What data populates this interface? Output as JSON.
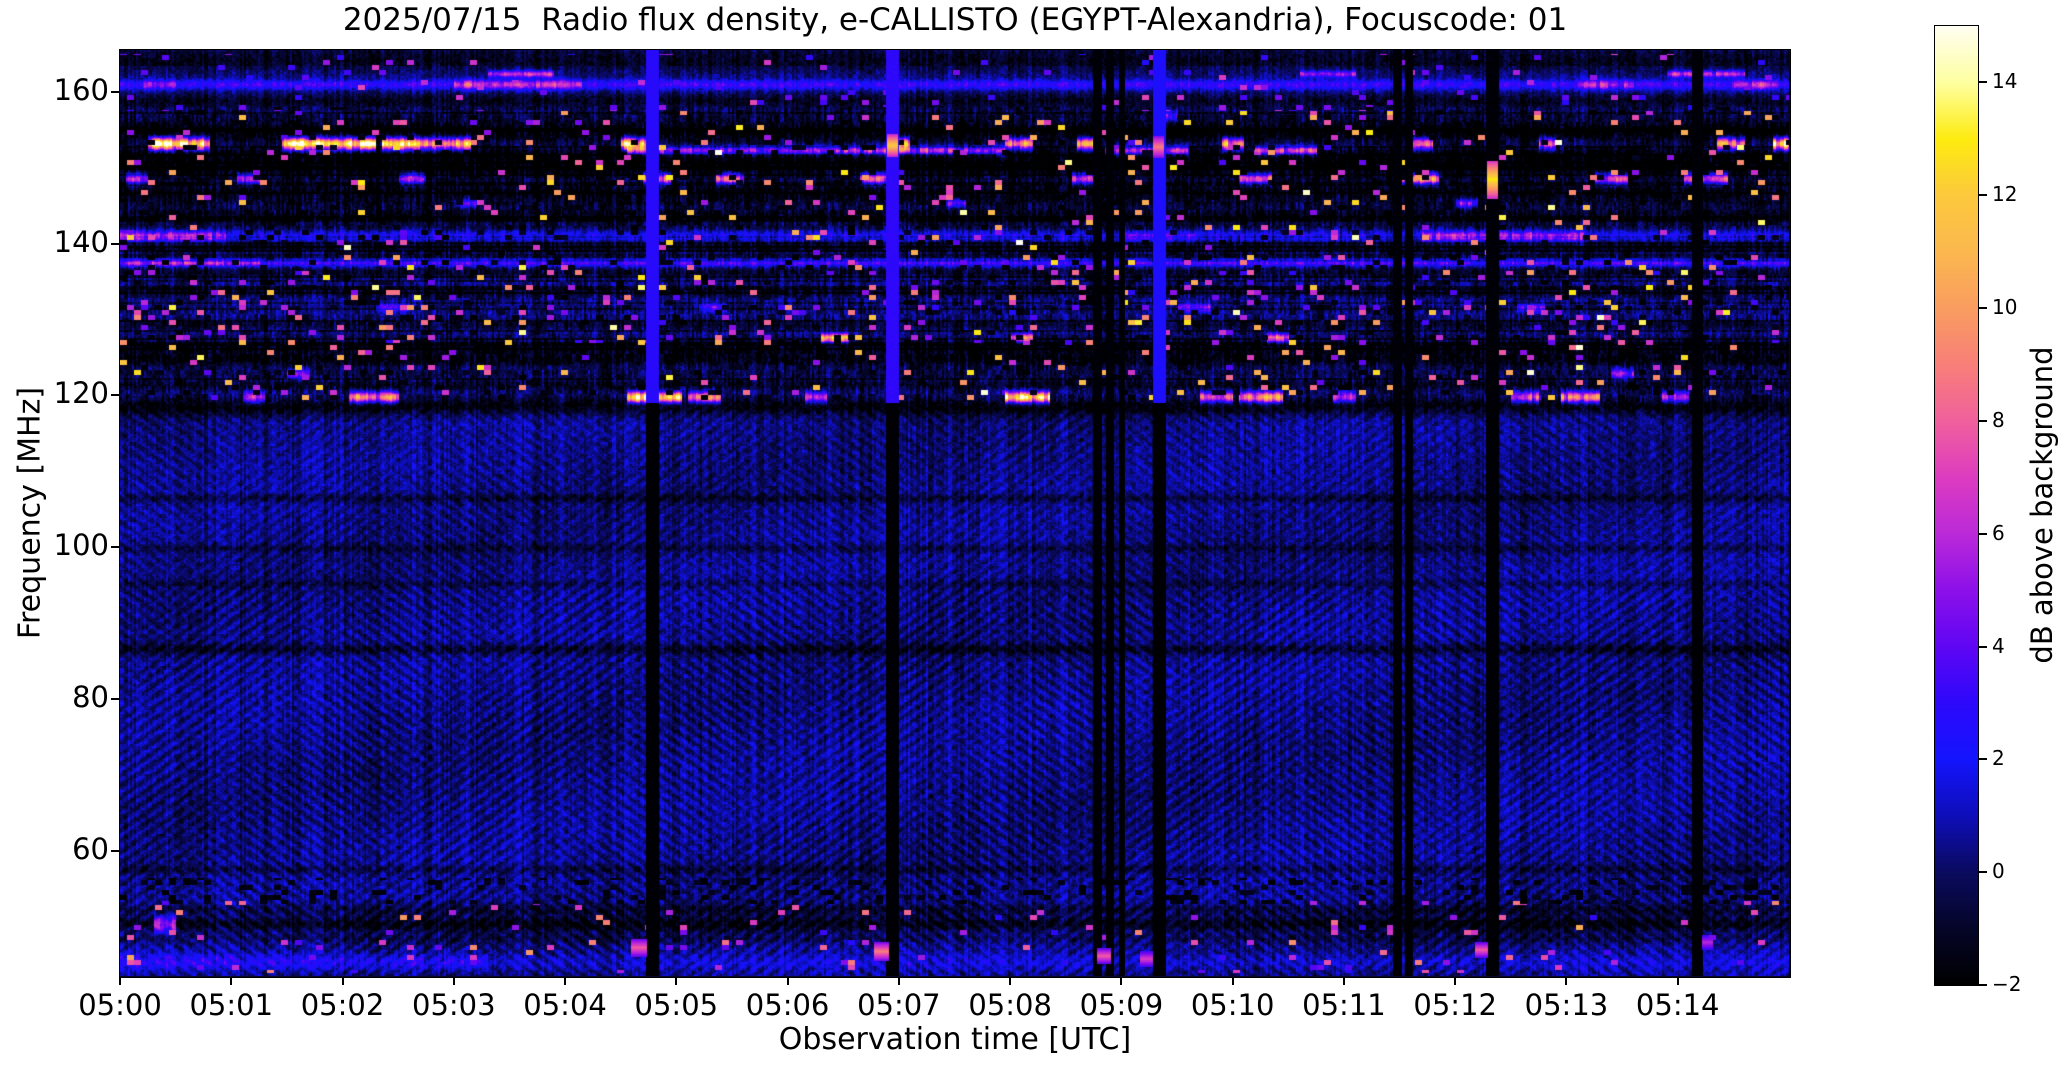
{
  "figure": {
    "title": "2025/07/15  Radio flux density, e-CALLISTO (EGYPT-Alexandria), Focuscode: 01",
    "background": "#ffffff"
  },
  "axes": {
    "xlabel": "Observation time [UTC]",
    "ylabel": "Frequency [MHz]",
    "x_tick_labels": [
      "05:00",
      "05:01",
      "05:02",
      "05:03",
      "05:04",
      "05:05",
      "05:06",
      "05:07",
      "05:08",
      "05:09",
      "05:10",
      "05:11",
      "05:12",
      "05:13",
      "05:14"
    ],
    "y_tick_values": [
      160,
      140,
      120,
      100,
      80,
      60
    ]
  },
  "colorbar": {
    "label": "dB above background",
    "ticks": [
      -2,
      0,
      2,
      4,
      6,
      8,
      10,
      12,
      14
    ],
    "vmin": -2,
    "vmax": 15
  },
  "chart_data": {
    "type": "heatmap",
    "title": "2025/07/15  Radio flux density, e-CALLISTO (EGYPT-Alexandria), Focuscode: 01",
    "xlabel": "Observation time [UTC]",
    "ylabel": "Frequency [MHz]",
    "value_label": "dB above background",
    "x_start_utc": "05:00",
    "x_end_utc": "05:15",
    "x_minutes": 15,
    "freq_top_mhz": 165.5,
    "freq_bottom_mhz": 43.5,
    "vmin": -2,
    "vmax": 15,
    "colorbar_ticks": [
      -2,
      0,
      2,
      4,
      6,
      8,
      10,
      12,
      14
    ],
    "colormap_stops": [
      [
        0.0,
        0,
        0,
        0
      ],
      [
        0.059,
        5,
        5,
        40
      ],
      [
        0.118,
        10,
        10,
        95
      ],
      [
        0.176,
        14,
        14,
        185
      ],
      [
        0.235,
        20,
        20,
        253
      ],
      [
        0.294,
        45,
        8,
        251
      ],
      [
        0.353,
        95,
        6,
        244
      ],
      [
        0.412,
        141,
        16,
        233
      ],
      [
        0.471,
        187,
        42,
        216
      ],
      [
        0.529,
        221,
        60,
        192
      ],
      [
        0.588,
        240,
        96,
        156
      ],
      [
        0.647,
        248,
        127,
        120
      ],
      [
        0.706,
        249,
        157,
        96
      ],
      [
        0.765,
        251,
        184,
        78
      ],
      [
        0.824,
        252,
        201,
        60
      ],
      [
        0.882,
        253,
        235,
        16
      ],
      [
        0.941,
        254,
        255,
        160
      ],
      [
        1.0,
        255,
        254,
        242
      ]
    ],
    "background_level_db": 0.4,
    "rfi_zone": {
      "f0": 119.0,
      "f1": 158.0
    },
    "ripple": {
      "f_max": 118.5,
      "ky": 0.57,
      "kt": 44,
      "morph_t": 2.0,
      "morph_y": 0.01,
      "amp_upper": 0.5,
      "amp_lower": 0.72,
      "split_f": 95,
      "slow_amp": 0.3
    },
    "interference_lines": [
      {
        "f": 163.9,
        "sigma": 1.2,
        "base": -0.9,
        "bursts": []
      },
      {
        "f": 161.0,
        "sigma": 0.45,
        "base": 3.0,
        "bursts": [
          {
            "t0": 0.2,
            "t1": 0.5,
            "amp": 5
          },
          {
            "t0": 3.0,
            "t1": 4.15,
            "amp": 6.5
          },
          {
            "t0": 13.1,
            "t1": 13.6,
            "amp": 5.5
          },
          {
            "t0": 14.5,
            "t1": 14.9,
            "amp": 6
          }
        ]
      },
      {
        "f": 162.4,
        "sigma": 0.3,
        "base": 0.2,
        "bursts": [
          {
            "t0": 3.3,
            "t1": 3.9,
            "amp": 6
          },
          {
            "t0": 10.6,
            "t1": 11.1,
            "amp": 5
          },
          {
            "t0": 13.9,
            "t1": 14.6,
            "amp": 6
          }
        ]
      },
      {
        "f": 158.8,
        "sigma": 0.7,
        "base": -1.6,
        "bursts": []
      },
      {
        "f": 156.9,
        "sigma": 0.5,
        "base": -0.6,
        "bursts": [
          {
            "t0": 9.3,
            "t1": 9.5,
            "amp": 4
          }
        ]
      },
      {
        "f": 154.8,
        "sigma": 1.1,
        "base": -2.6,
        "bursts": []
      },
      {
        "f": 153.2,
        "sigma": 0.55,
        "base": 0.4,
        "bursts": [
          {
            "t0": 0.25,
            "t1": 0.8,
            "amp": 14.5
          },
          {
            "t0": 1.45,
            "t1": 2.3,
            "amp": 14.5
          },
          {
            "t0": 2.35,
            "t1": 3.15,
            "amp": 12
          },
          {
            "t0": 4.5,
            "t1": 4.72,
            "amp": 13
          },
          {
            "t0": 6.95,
            "t1": 7.1,
            "amp": 12
          },
          {
            "t0": 7.95,
            "t1": 8.2,
            "amp": 10
          },
          {
            "t0": 8.6,
            "t1": 8.75,
            "amp": 12.5
          },
          {
            "t0": 9.9,
            "t1": 10.1,
            "amp": 11
          },
          {
            "t0": 11.6,
            "t1": 11.8,
            "amp": 10
          },
          {
            "t0": 12.75,
            "t1": 12.9,
            "amp": 8
          },
          {
            "t0": 14.35,
            "t1": 14.6,
            "amp": 10
          },
          {
            "t0": 14.85,
            "t1": 15.0,
            "amp": 13.5
          }
        ]
      },
      {
        "f": 151.6,
        "sigma": 0.9,
        "base": -2.3,
        "bursts": []
      },
      {
        "f": 152.3,
        "sigma": 0.4,
        "base": 0.0,
        "bursts": [
          {
            "t0": 4.55,
            "t1": 6.5,
            "amp": 6
          },
          {
            "t0": 6.5,
            "t1": 7.95,
            "amp": 7.5
          },
          {
            "t0": 8.85,
            "t1": 9.6,
            "amp": 7
          },
          {
            "t0": 10.2,
            "t1": 10.75,
            "amp": 8.5
          }
        ]
      },
      {
        "f": 149.9,
        "sigma": 0.8,
        "base": -2.0,
        "bursts": []
      },
      {
        "f": 148.6,
        "sigma": 0.5,
        "base": -0.6,
        "bursts": [
          {
            "t0": 0.05,
            "t1": 0.25,
            "amp": 6
          },
          {
            "t0": 1.05,
            "t1": 1.25,
            "amp": 5.5
          },
          {
            "t0": 2.5,
            "t1": 2.75,
            "amp": 6
          },
          {
            "t0": 4.7,
            "t1": 4.95,
            "amp": 9
          },
          {
            "t0": 5.35,
            "t1": 5.6,
            "amp": 8
          },
          {
            "t0": 6.65,
            "t1": 6.95,
            "amp": 8.5
          },
          {
            "t0": 8.55,
            "t1": 8.8,
            "amp": 6.5
          },
          {
            "t0": 10.05,
            "t1": 10.35,
            "amp": 8
          },
          {
            "t0": 11.5,
            "t1": 11.85,
            "amp": 9
          },
          {
            "t0": 13.25,
            "t1": 13.55,
            "amp": 7
          },
          {
            "t0": 14.05,
            "t1": 14.45,
            "amp": 8
          }
        ]
      },
      {
        "f": 146.8,
        "sigma": 0.9,
        "base": -2.1,
        "bursts": []
      },
      {
        "f": 145.4,
        "sigma": 0.4,
        "base": -0.7,
        "bursts": [
          {
            "t0": 3.0,
            "t1": 3.2,
            "amp": 4
          },
          {
            "t0": 7.4,
            "t1": 7.6,
            "amp": 4.5
          },
          {
            "t0": 12.0,
            "t1": 12.2,
            "amp": 5
          }
        ]
      },
      {
        "f": 143.8,
        "sigma": 0.7,
        "base": -1.9,
        "bursts": []
      },
      {
        "f": 142.3,
        "sigma": 0.4,
        "base": -0.8,
        "bursts": []
      },
      {
        "f": 141.0,
        "sigma": 0.5,
        "base": 2.0,
        "bursts": [
          {
            "t0": 0.0,
            "t1": 0.95,
            "amp": 5.5
          },
          {
            "t0": 9.0,
            "t1": 9.7,
            "amp": 3.5
          },
          {
            "t0": 11.7,
            "t1": 13.15,
            "amp": 5.5
          }
        ]
      },
      {
        "f": 139.6,
        "sigma": 0.6,
        "base": -1.7,
        "bursts": []
      },
      {
        "f": 137.5,
        "sigma": 0.32,
        "base": 3.4,
        "bursts": [
          {
            "t0": 0.0,
            "t1": 1.25,
            "amp": 5.5
          }
        ]
      },
      {
        "f": 136.2,
        "sigma": 0.5,
        "base": -1.4,
        "bursts": []
      },
      {
        "f": 133.7,
        "sigma": 0.5,
        "base": -1.5,
        "bursts": []
      },
      {
        "f": 131.6,
        "sigma": 0.4,
        "base": -0.4,
        "bursts": [
          {
            "t0": 2.3,
            "t1": 2.6,
            "amp": 3.5
          },
          {
            "t0": 5.2,
            "t1": 5.45,
            "amp": 3.5
          },
          {
            "t0": 9.5,
            "t1": 9.8,
            "amp": 4
          },
          {
            "t0": 12.55,
            "t1": 12.8,
            "amp": 4
          }
        ]
      },
      {
        "f": 129.4,
        "sigma": 0.5,
        "base": -1.3,
        "bursts": []
      },
      {
        "f": 127.6,
        "sigma": 0.4,
        "base": -0.5,
        "bursts": [
          {
            "t0": 6.3,
            "t1": 6.55,
            "amp": 11
          },
          {
            "t0": 8.0,
            "t1": 8.2,
            "amp": 9
          },
          {
            "t0": 10.3,
            "t1": 10.5,
            "amp": 8
          }
        ]
      },
      {
        "f": 126.4,
        "sigma": 0.6,
        "base": -1.9,
        "bursts": []
      },
      {
        "f": 124.8,
        "sigma": 0.7,
        "base": -2.1,
        "bursts": []
      },
      {
        "f": 122.9,
        "sigma": 0.45,
        "base": -0.9,
        "bursts": [
          {
            "t0": 1.5,
            "t1": 1.7,
            "amp": 5
          },
          {
            "t0": 13.4,
            "t1": 13.6,
            "amp": 5
          }
        ]
      },
      {
        "f": 121.4,
        "sigma": 0.5,
        "base": -1.6,
        "bursts": []
      },
      {
        "f": 119.8,
        "sigma": 0.5,
        "base": -0.2,
        "bursts": [
          {
            "t0": 1.1,
            "t1": 1.3,
            "amp": 6
          },
          {
            "t0": 2.05,
            "t1": 2.5,
            "amp": 9.5
          },
          {
            "t0": 4.55,
            "t1": 5.05,
            "amp": 14
          },
          {
            "t0": 5.1,
            "t1": 5.4,
            "amp": 10
          },
          {
            "t0": 6.15,
            "t1": 6.35,
            "amp": 7
          },
          {
            "t0": 7.95,
            "t1": 8.35,
            "amp": 13
          },
          {
            "t0": 9.7,
            "t1": 10.0,
            "amp": 8
          },
          {
            "t0": 10.05,
            "t1": 10.45,
            "amp": 9.5
          },
          {
            "t0": 10.9,
            "t1": 11.1,
            "amp": 6
          },
          {
            "t0": 12.5,
            "t1": 12.75,
            "amp": 8
          },
          {
            "t0": 12.95,
            "t1": 13.3,
            "amp": 8.5
          },
          {
            "t0": 13.85,
            "t1": 14.1,
            "amp": 6
          }
        ]
      },
      {
        "f": 118.6,
        "sigma": 0.8,
        "base": -2.1,
        "bursts": []
      },
      {
        "f": 106.5,
        "sigma": 0.4,
        "base": -1.2,
        "bursts": []
      },
      {
        "f": 99.9,
        "sigma": 0.4,
        "base": -1.0,
        "bursts": []
      },
      {
        "f": 95.2,
        "sigma": 0.35,
        "base": -0.8,
        "bursts": []
      },
      {
        "f": 86.6,
        "sigma": 0.5,
        "base": -1.5,
        "bursts": []
      },
      {
        "f": 57.6,
        "sigma": 0.4,
        "base": -1.0,
        "bursts": []
      },
      {
        "f": 52.3,
        "sigma": 0.5,
        "base": -1.2,
        "bursts": []
      },
      {
        "f": 50.4,
        "sigma": 0.7,
        "base": -1.9,
        "bursts": [
          {
            "t0": 0.3,
            "t1": 0.5,
            "amp": 5
          }
        ]
      },
      {
        "f": 48.5,
        "sigma": 0.4,
        "base": -0.7,
        "bursts": []
      },
      {
        "f": 45.4,
        "sigma": 0.8,
        "base": 1.1,
        "bursts": [
          {
            "t0": 0.0,
            "t1": 3.3,
            "amp": 2.2
          }
        ]
      }
    ],
    "speckle_bands": [
      {
        "f0": 119.5,
        "f1": 157.5,
        "density": 0.05,
        "amp0": 4,
        "amp1": 13,
        "dark": false
      },
      {
        "f0": 127.0,
        "f1": 136.5,
        "density": 0.03,
        "amp0": 3,
        "amp1": 7,
        "dark": false
      },
      {
        "f0": 157.5,
        "f1": 165.0,
        "density": 0.045,
        "amp0": 2.5,
        "amp1": 6.5,
        "dark": false
      },
      {
        "f0": 44.0,
        "f1": 53.5,
        "density": 0.035,
        "amp0": 3,
        "amp1": 9,
        "dark": false
      },
      {
        "f0": 53.0,
        "f1": 56.5,
        "density": 0.18,
        "amp0": -2,
        "amp1": -1.2,
        "dark": true
      },
      {
        "f0": 119.5,
        "f1": 158.0,
        "density": 0.1,
        "amp0": -2,
        "amp1": -1.0,
        "dark": true
      }
    ],
    "dropout_columns": [
      {
        "t0": 4.72,
        "t1": 4.84,
        "top": 2.8,
        "bot": -1.9
      },
      {
        "t0": 6.88,
        "t1": 7.0,
        "top": 3.0,
        "bot": -1.9
      },
      {
        "t0": 8.74,
        "t1": 8.82,
        "top": -1.8,
        "bot": -1.9
      },
      {
        "t0": 8.86,
        "t1": 8.93,
        "top": -1.8,
        "bot": -1.9
      },
      {
        "t0": 8.97,
        "t1": 9.03,
        "top": -1.8,
        "bot": -1.9
      },
      {
        "t0": 9.28,
        "t1": 9.4,
        "top": 2.4,
        "bot": -1.9
      },
      {
        "t0": 11.44,
        "t1": 11.52,
        "top": -1.8,
        "bot": -1.9
      },
      {
        "t0": 11.54,
        "t1": 11.62,
        "top": -1.8,
        "bot": -1.9
      },
      {
        "t0": 12.27,
        "t1": 12.39,
        "top": -1.8,
        "bot": -1.9
      },
      {
        "t0": 14.12,
        "t1": 14.22,
        "top": -1.8,
        "bot": -1.9
      }
    ],
    "dropout_split_freq": 119.0,
    "spots": [
      {
        "t": 12.33,
        "f": 148.5,
        "amp": 13,
        "dt": 0.05,
        "df": 2.5
      },
      {
        "t": 6.94,
        "f": 153.0,
        "amp": 12,
        "dt": 0.05,
        "df": 1.5
      },
      {
        "t": 9.33,
        "f": 152.8,
        "amp": 9,
        "dt": 0.05,
        "df": 1.5
      },
      {
        "t": 4.66,
        "f": 47.3,
        "amp": 8,
        "dt": 0.07,
        "df": 1.2
      },
      {
        "t": 6.84,
        "f": 46.8,
        "amp": 9,
        "dt": 0.07,
        "df": 1.2
      },
      {
        "t": 8.84,
        "f": 46.2,
        "amp": 8,
        "dt": 0.06,
        "df": 1.0
      },
      {
        "t": 9.22,
        "f": 45.8,
        "amp": 7,
        "dt": 0.06,
        "df": 1.0
      },
      {
        "t": 12.23,
        "f": 47.0,
        "amp": 8,
        "dt": 0.06,
        "df": 1.0
      },
      {
        "t": 14.26,
        "f": 48.0,
        "amp": 6,
        "dt": 0.05,
        "df": 1.0
      }
    ]
  }
}
